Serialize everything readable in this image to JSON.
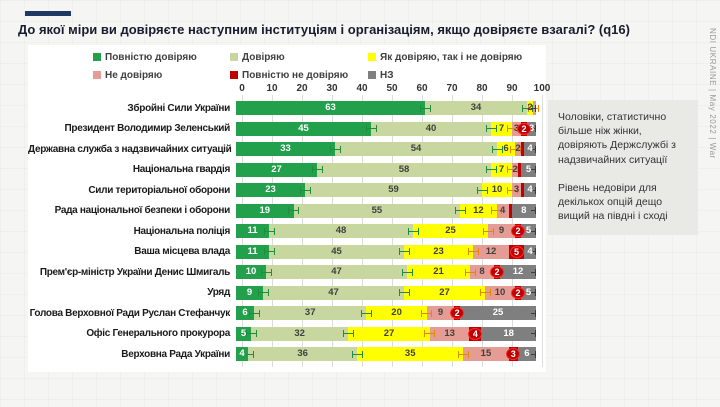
{
  "page": {
    "title": "До якої міри ви довіряєте наступним інституціям і організаціям, якщо довіряєте взагалі? (q16)",
    "watermark": "NDI UKRAINE | May 2022 | War"
  },
  "legend": {
    "items": [
      {
        "label": "Повністю довіряю",
        "color": "#22a04c"
      },
      {
        "label": "Довіряю",
        "color": "#c8d7a0"
      },
      {
        "label": "Як довіряю, так і не довіряю",
        "color": "#ffff00"
      },
      {
        "label": "Не довіряю",
        "color": "#e59c94"
      },
      {
        "label": "Повністю не довіряю",
        "color": "#c00000"
      },
      {
        "label": "НЗ",
        "color": "#7f7f7f"
      }
    ]
  },
  "axis": {
    "min": 0,
    "max": 100,
    "ticks": [
      0,
      10,
      20,
      30,
      40,
      50,
      60,
      70,
      80,
      90,
      100
    ]
  },
  "chart_data": {
    "type": "bar",
    "orientation": "horizontal_stacked",
    "title": "До якої міри ви довіряєте наступним інституціям і організаціям, якщо довіряєте взагалі? (q16)",
    "xlabel": "",
    "ylabel": "",
    "xlim": [
      0,
      100
    ],
    "grid": true,
    "legend_position": "top",
    "series_names": [
      "Повністю довіряю",
      "Довіряю",
      "Як довіряю, так і не довіряю",
      "Не довіряю",
      "Повністю не довіряю",
      "НЗ"
    ],
    "series_colors": [
      "#22a04c",
      "#c8d7a0",
      "#ffff00",
      "#e59c94",
      "#c00000",
      "#7f7f7f"
    ],
    "categories": [
      "Збройні Сили України",
      "Президент Володимир Зеленський",
      "Державна служба з надзвичайних ситуацій",
      "Національна гвардія",
      "Сили територіальної оборони",
      "Рада національної безпеки і оборони",
      "Національна поліція",
      "Ваша місцева влада",
      "Прем'єр-міністр України Денис Шмигаль",
      "Уряд",
      "Голова Верховної Ради Руслан Стефанчук",
      "Офіс Генерального прокурора",
      "Верховна Рада України"
    ],
    "rows": [
      {
        "category": "Збройні Сили України",
        "values": [
          63,
          34,
          2,
          1,
          0,
          0
        ]
      },
      {
        "category": "Президент Володимир Зеленський",
        "values": [
          45,
          40,
          7,
          3,
          2,
          3
        ]
      },
      {
        "category": "Державна служба з надзвичайних ситуацій",
        "values": [
          33,
          54,
          6,
          2,
          1,
          4
        ]
      },
      {
        "category": "Національна гвардія",
        "values": [
          27,
          58,
          7,
          2,
          1,
          5
        ]
      },
      {
        "category": "Сили територіальної оборони",
        "values": [
          23,
          59,
          10,
          3,
          1,
          4
        ]
      },
      {
        "category": "Рада національної безпеки і оборони",
        "values": [
          19,
          55,
          12,
          4,
          1,
          8
        ]
      },
      {
        "category": "Національна поліція",
        "values": [
          11,
          48,
          25,
          9,
          2,
          5
        ]
      },
      {
        "category": "Ваша місцева влада",
        "values": [
          11,
          45,
          23,
          12,
          5,
          4
        ]
      },
      {
        "category": "Прем'єр-міністр України Денис Шмигаль",
        "values": [
          10,
          47,
          21,
          8,
          2,
          12
        ]
      },
      {
        "category": "Уряд",
        "values": [
          9,
          47,
          27,
          10,
          2,
          5
        ]
      },
      {
        "category": "Голова Верховної Ради Руслан Стефанчук",
        "values": [
          6,
          37,
          20,
          9,
          2,
          25
        ]
      },
      {
        "category": "Офіс Генерального прокурора",
        "values": [
          5,
          32,
          27,
          13,
          4,
          18
        ]
      },
      {
        "category": "Верховна Рада України",
        "values": [
          4,
          36,
          35,
          15,
          3,
          6
        ]
      }
    ]
  },
  "side_notes": {
    "note1": "Чоловіки, статистично більше ніж жінки, довіряють Держслужбі з надзвичайних ситуації",
    "note2": "Рівень недовіри для декількох опцій дещо вищий на півдні і сході"
  }
}
